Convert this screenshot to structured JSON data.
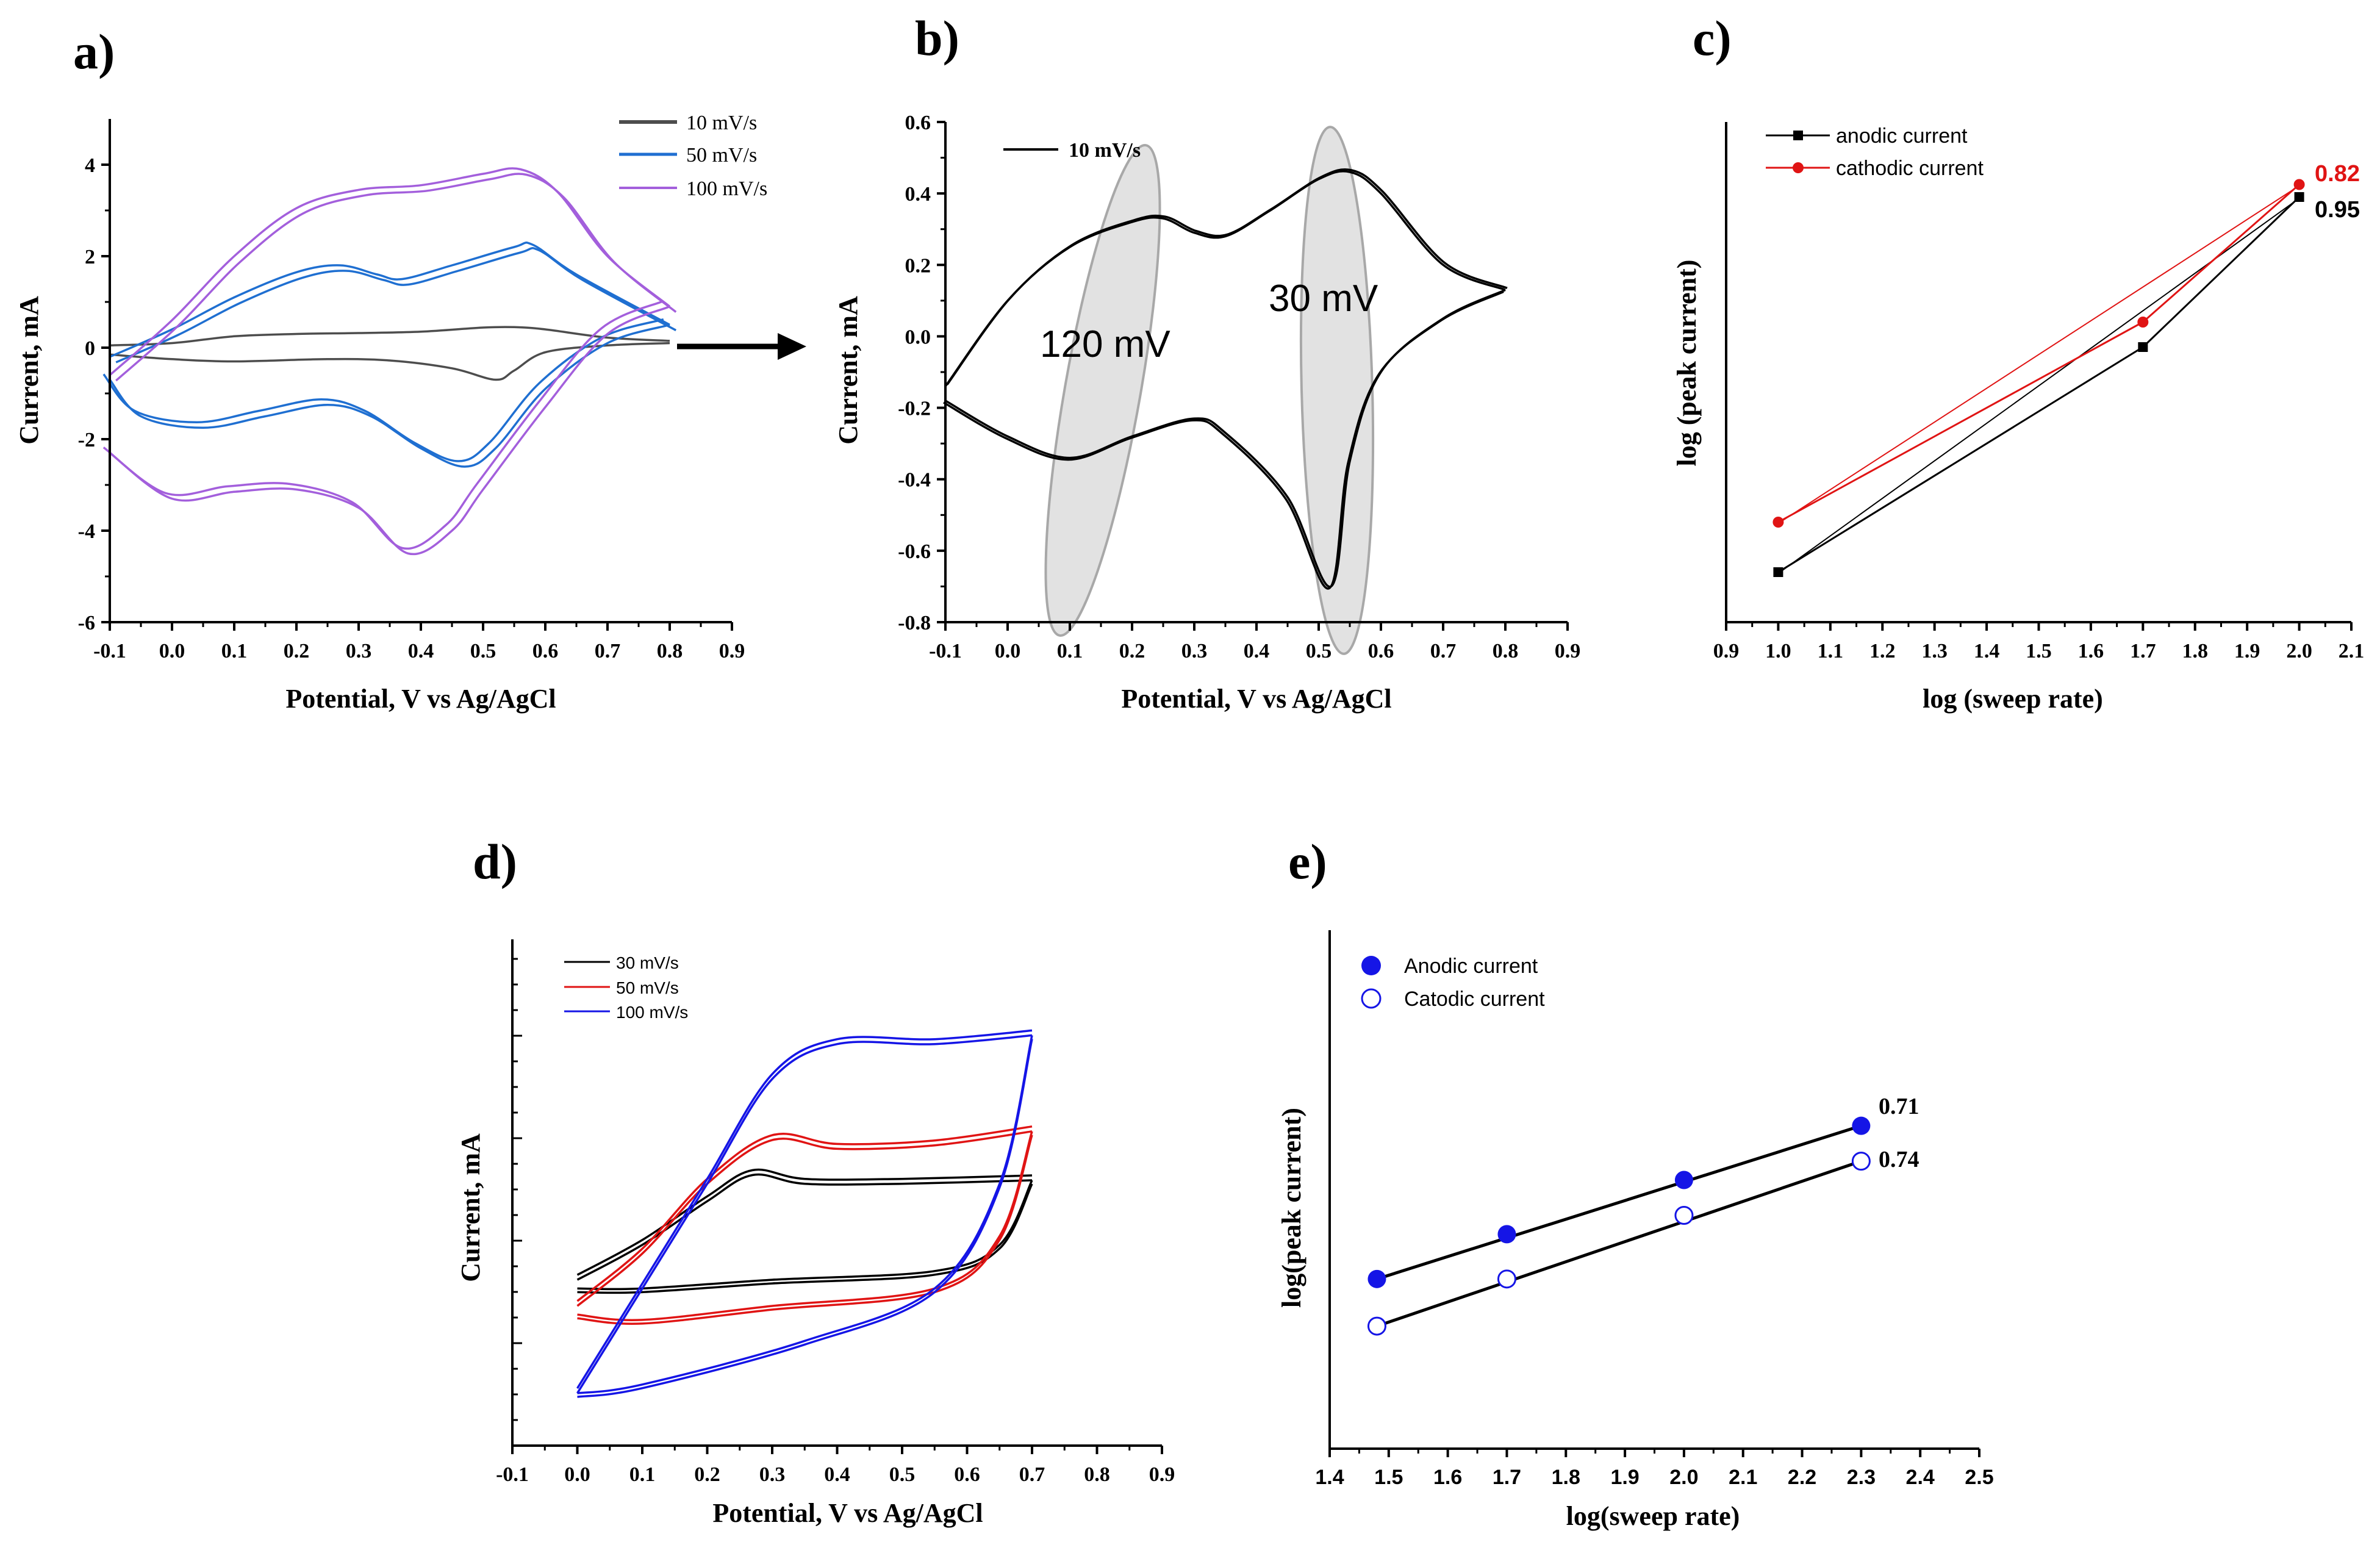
{
  "panels": {
    "a": {
      "label": "a)",
      "xlabel": "Potential, V vs Ag/AgCl",
      "ylabel": "Current, mA",
      "x_ticks": [
        "-0.1",
        "0.0",
        "0.1",
        "0.2",
        "0.3",
        "0.4",
        "0.5",
        "0.6",
        "0.7",
        "0.8",
        "0.9"
      ],
      "y_ticks": [
        "4",
        "2",
        "0",
        "-2",
        "-4",
        "-6"
      ],
      "legend": [
        "10 mV/s",
        "50 mV/s",
        "100 mV/s"
      ]
    },
    "b": {
      "label": "b)",
      "xlabel": "Potential, V vs Ag/AgCl",
      "ylabel": "Current, mA",
      "x_ticks": [
        "-0.1",
        "0.0",
        "0.1",
        "0.2",
        "0.3",
        "0.4",
        "0.5",
        "0.6",
        "0.7",
        "0.8",
        "0.9"
      ],
      "y_ticks": [
        "0.6",
        "0.4",
        "0.2",
        "0.0",
        "-0.2",
        "-0.4",
        "-0.6",
        "-0.8"
      ],
      "legend": [
        "10 mV/s"
      ],
      "annotations": [
        "120 mV",
        "30 mV"
      ]
    },
    "c": {
      "label": "c)",
      "xlabel": "log (sweep rate)",
      "ylabel": "log (peak current)",
      "x_ticks": [
        "0.9",
        "1.0",
        "1.1",
        "1.2",
        "1.3",
        "1.4",
        "1.5",
        "1.6",
        "1.7",
        "1.8",
        "1.9",
        "2.0",
        "2.1"
      ],
      "legend": [
        "anodic current",
        "cathodic current"
      ],
      "slope_labels": [
        "0.82",
        "0.95"
      ]
    },
    "d": {
      "label": "d)",
      "xlabel": "Potential, V vs Ag/AgCl",
      "ylabel": "Current, mA",
      "x_ticks": [
        "-0.1",
        "0.0",
        "0.1",
        "0.2",
        "0.3",
        "0.4",
        "0.5",
        "0.6",
        "0.7",
        "0.8",
        "0.9"
      ],
      "legend": [
        "30 mV/s",
        "50 mV/s",
        "100 mV/s"
      ]
    },
    "e": {
      "label": "e)",
      "xlabel": "log(sweep rate)",
      "ylabel": "log(peak current)",
      "x_ticks": [
        "1.4",
        "1.5",
        "1.6",
        "1.7",
        "1.8",
        "1.9",
        "2.0",
        "2.1",
        "2.2",
        "2.3",
        "2.4",
        "2.5"
      ],
      "legend": [
        "Anodic current",
        "Catodic current"
      ],
      "slope_labels": [
        "0.71",
        "0.74"
      ]
    }
  },
  "colors": {
    "s10": "#4d4d4d",
    "s50": "#1f6fd1",
    "s100": "#a35fdc",
    "black": "#000000",
    "red": "#e01414",
    "blue": "#1515e6",
    "highlight": "#b9b9b9"
  },
  "chart_data": [
    {
      "type": "line",
      "panel": "a",
      "title": "",
      "xlabel": "Potential, V vs Ag/AgCl",
      "ylabel": "Current, mA",
      "xlim": [
        -0.1,
        0.9
      ],
      "ylim": [
        -6,
        5
      ],
      "series": [
        {
          "name": "10 mV/s",
          "anodic": [
            [
              -0.1,
              0.05
            ],
            [
              0.0,
              0.1
            ],
            [
              0.1,
              0.25
            ],
            [
              0.2,
              0.3
            ],
            [
              0.3,
              0.32
            ],
            [
              0.4,
              0.35
            ],
            [
              0.5,
              0.44
            ],
            [
              0.55,
              0.45
            ],
            [
              0.6,
              0.4
            ],
            [
              0.7,
              0.22
            ],
            [
              0.8,
              0.15
            ]
          ],
          "cathodic": [
            [
              0.8,
              0.1
            ],
            [
              0.7,
              0.05
            ],
            [
              0.6,
              -0.1
            ],
            [
              0.55,
              -0.5
            ],
            [
              0.52,
              -0.7
            ],
            [
              0.45,
              -0.45
            ],
            [
              0.35,
              -0.28
            ],
            [
              0.25,
              -0.25
            ],
            [
              0.1,
              -0.3
            ],
            [
              0.0,
              -0.25
            ],
            [
              -0.1,
              -0.15
            ]
          ]
        },
        {
          "name": "50 mV/s",
          "anodic": [
            [
              -0.1,
              -0.2
            ],
            [
              0.0,
              0.4
            ],
            [
              0.1,
              1.1
            ],
            [
              0.2,
              1.65
            ],
            [
              0.27,
              1.8
            ],
            [
              0.33,
              1.6
            ],
            [
              0.37,
              1.5
            ],
            [
              0.45,
              1.8
            ],
            [
              0.55,
              2.2
            ],
            [
              0.58,
              2.25
            ],
            [
              0.65,
              1.6
            ],
            [
              0.8,
              0.5
            ]
          ],
          "cathodic": [
            [
              0.8,
              0.5
            ],
            [
              0.7,
              0.1
            ],
            [
              0.6,
              -0.9
            ],
            [
              0.52,
              -2.2
            ],
            [
              0.47,
              -2.6
            ],
            [
              0.4,
              -2.2
            ],
            [
              0.32,
              -1.5
            ],
            [
              0.25,
              -1.25
            ],
            [
              0.15,
              -1.5
            ],
            [
              0.05,
              -1.75
            ],
            [
              -0.05,
              -1.5
            ],
            [
              -0.1,
              -0.7
            ]
          ]
        },
        {
          "name": "100 mV/s",
          "anodic": [
            [
              -0.1,
              -0.6
            ],
            [
              0.0,
              0.6
            ],
            [
              0.1,
              2.0
            ],
            [
              0.2,
              3.05
            ],
            [
              0.3,
              3.45
            ],
            [
              0.4,
              3.55
            ],
            [
              0.5,
              3.8
            ],
            [
              0.56,
              3.9
            ],
            [
              0.62,
              3.4
            ],
            [
              0.7,
              2.0
            ],
            [
              0.8,
              0.9
            ]
          ],
          "cathodic": [
            [
              0.8,
              0.9
            ],
            [
              0.7,
              0.3
            ],
            [
              0.6,
              -1.3
            ],
            [
              0.5,
              -3.1
            ],
            [
              0.45,
              -4.0
            ],
            [
              0.38,
              -4.5
            ],
            [
              0.3,
              -3.5
            ],
            [
              0.2,
              -3.1
            ],
            [
              0.1,
              -3.15
            ],
            [
              0.0,
              -3.3
            ],
            [
              -0.1,
              -2.3
            ]
          ]
        }
      ]
    },
    {
      "type": "line",
      "panel": "b",
      "xlabel": "Potential, V vs Ag/AgCl",
      "ylabel": "Current, mA",
      "xlim": [
        -0.1,
        0.9
      ],
      "ylim": [
        -0.8,
        0.6
      ],
      "series": [
        {
          "name": "10 mV/s",
          "anodic": [
            [
              -0.1,
              -0.14
            ],
            [
              0.0,
              0.1
            ],
            [
              0.1,
              0.25
            ],
            [
              0.2,
              0.32
            ],
            [
              0.25,
              0.33
            ],
            [
              0.3,
              0.29
            ],
            [
              0.35,
              0.28
            ],
            [
              0.42,
              0.35
            ],
            [
              0.5,
              0.44
            ],
            [
              0.55,
              0.46
            ],
            [
              0.6,
              0.4
            ],
            [
              0.7,
              0.2
            ],
            [
              0.8,
              0.13
            ]
          ],
          "cathodic": [
            [
              0.8,
              0.13
            ],
            [
              0.7,
              0.05
            ],
            [
              0.6,
              -0.1
            ],
            [
              0.55,
              -0.35
            ],
            [
              0.52,
              -0.7
            ],
            [
              0.45,
              -0.45
            ],
            [
              0.35,
              -0.27
            ],
            [
              0.3,
              -0.23
            ],
            [
              0.2,
              -0.28
            ],
            [
              0.1,
              -0.34
            ],
            [
              0.0,
              -0.28
            ],
            [
              -0.1,
              -0.18
            ]
          ]
        }
      ],
      "annotations": [
        {
          "text": "120 mV",
          "x": 0.05,
          "y": -0.02
        },
        {
          "text": "30 mV",
          "x": 0.43,
          "y": 0.1
        }
      ]
    },
    {
      "type": "line",
      "panel": "c",
      "xlabel": "log (sweep rate)",
      "ylabel": "log (peak current)",
      "xlim": [
        0.9,
        2.1
      ],
      "series": [
        {
          "name": "anodic current",
          "x": [
            1.0,
            1.7,
            2.0
          ],
          "y": [
            -0.55,
            0.35,
            0.95
          ],
          "slope": 0.95
        },
        {
          "name": "cathodic current",
          "x": [
            1.0,
            1.7,
            2.0
          ],
          "y": [
            -0.35,
            0.45,
            1.0
          ],
          "slope": 0.82
        }
      ]
    },
    {
      "type": "line",
      "panel": "d",
      "xlabel": "Potential, V vs Ag/AgCl",
      "ylabel": "Current, mA",
      "xlim": [
        -0.1,
        0.9
      ],
      "series": [
        {
          "name": "30 mV/s",
          "upper": [
            [
              0.0,
              -0.05
            ],
            [
              0.1,
              0.15
            ],
            [
              0.2,
              0.4
            ],
            [
              0.27,
              0.55
            ],
            [
              0.35,
              0.5
            ],
            [
              0.5,
              0.5
            ],
            [
              0.7,
              0.52
            ]
          ],
          "lower": [
            [
              0.7,
              0.52
            ],
            [
              0.65,
              0.15
            ],
            [
              0.55,
              0.0
            ],
            [
              0.3,
              -0.05
            ],
            [
              0.1,
              -0.1
            ],
            [
              0.0,
              -0.1
            ]
          ]
        },
        {
          "name": "50 mV/s",
          "upper": [
            [
              0.0,
              -0.2
            ],
            [
              0.1,
              0.1
            ],
            [
              0.2,
              0.5
            ],
            [
              0.3,
              0.75
            ],
            [
              0.4,
              0.7
            ],
            [
              0.55,
              0.72
            ],
            [
              0.7,
              0.8
            ]
          ],
          "lower": [
            [
              0.7,
              0.8
            ],
            [
              0.65,
              0.2
            ],
            [
              0.55,
              -0.1
            ],
            [
              0.3,
              -0.2
            ],
            [
              0.1,
              -0.28
            ],
            [
              0.0,
              -0.25
            ]
          ]
        },
        {
          "name": "100 mV/s",
          "upper": [
            [
              0.0,
              -0.7
            ],
            [
              0.1,
              -0.1
            ],
            [
              0.2,
              0.5
            ],
            [
              0.3,
              1.1
            ],
            [
              0.4,
              1.3
            ],
            [
              0.55,
              1.3
            ],
            [
              0.7,
              1.35
            ]
          ],
          "lower": [
            [
              0.7,
              1.35
            ],
            [
              0.65,
              0.5
            ],
            [
              0.55,
              -0.1
            ],
            [
              0.35,
              -0.4
            ],
            [
              0.1,
              -0.65
            ],
            [
              0.0,
              -0.7
            ]
          ]
        }
      ]
    },
    {
      "type": "scatter",
      "panel": "e",
      "xlabel": "log(sweep rate)",
      "ylabel": "log(peak current)",
      "xlim": [
        1.4,
        2.5
      ],
      "series": [
        {
          "name": "Anodic current",
          "x": [
            1.48,
            1.7,
            2.0,
            2.3
          ],
          "y": [
            0.12,
            0.31,
            0.54,
            0.77
          ],
          "slope": 0.71
        },
        {
          "name": "Catodic current",
          "x": [
            1.48,
            1.7,
            2.0,
            2.3
          ],
          "y": [
            -0.08,
            0.12,
            0.39,
            0.62
          ],
          "slope": 0.74
        }
      ]
    }
  ]
}
